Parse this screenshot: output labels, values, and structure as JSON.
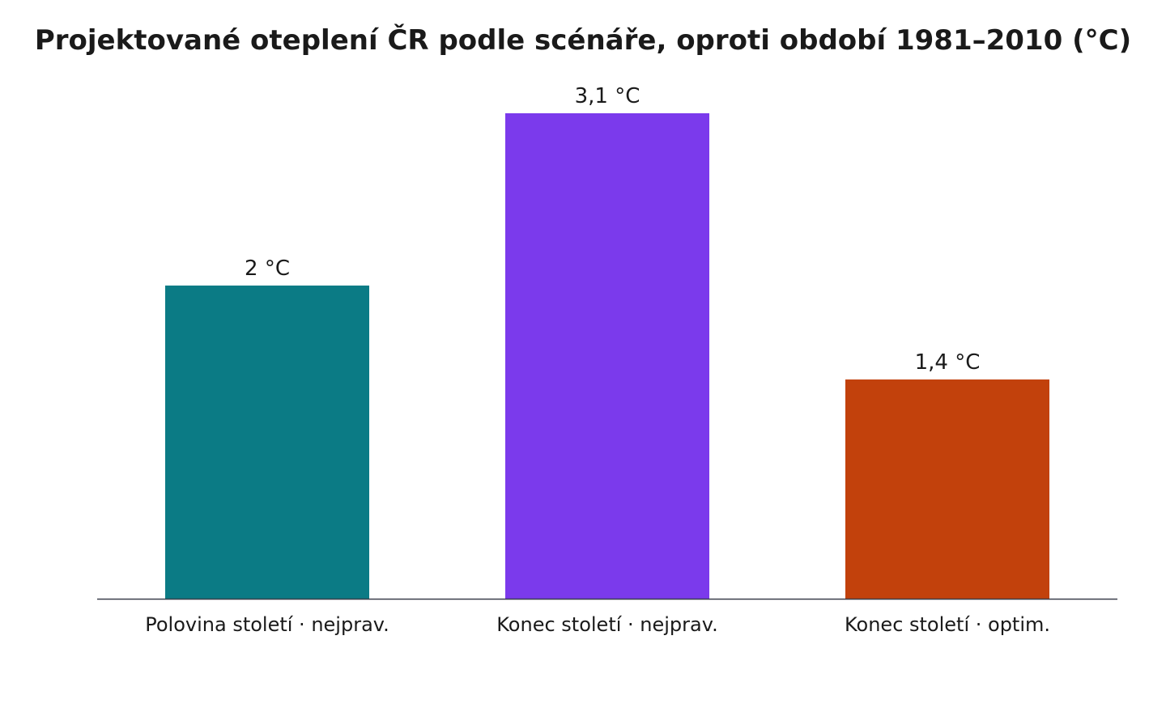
{
  "chart_data": {
    "type": "bar",
    "title": "Projektované oteplení ČR podle scénáře, oproti období 1981–2010 (°C)",
    "xlabel": "",
    "ylabel": "",
    "categories": [
      "Polovina století · nejprav.",
      "Konec století · nejprav.",
      "Konec století · optim."
    ],
    "values": [
      2.0,
      3.1,
      1.4
    ],
    "data_labels": [
      "2 °C",
      "3,1 °C",
      "1,4 °C"
    ],
    "colors": [
      "#0b7b85",
      "#7b3aec",
      "#c2410c"
    ],
    "ylim": [
      0,
      3.1
    ],
    "grid": false,
    "axis_color": "#3a3f4b"
  }
}
